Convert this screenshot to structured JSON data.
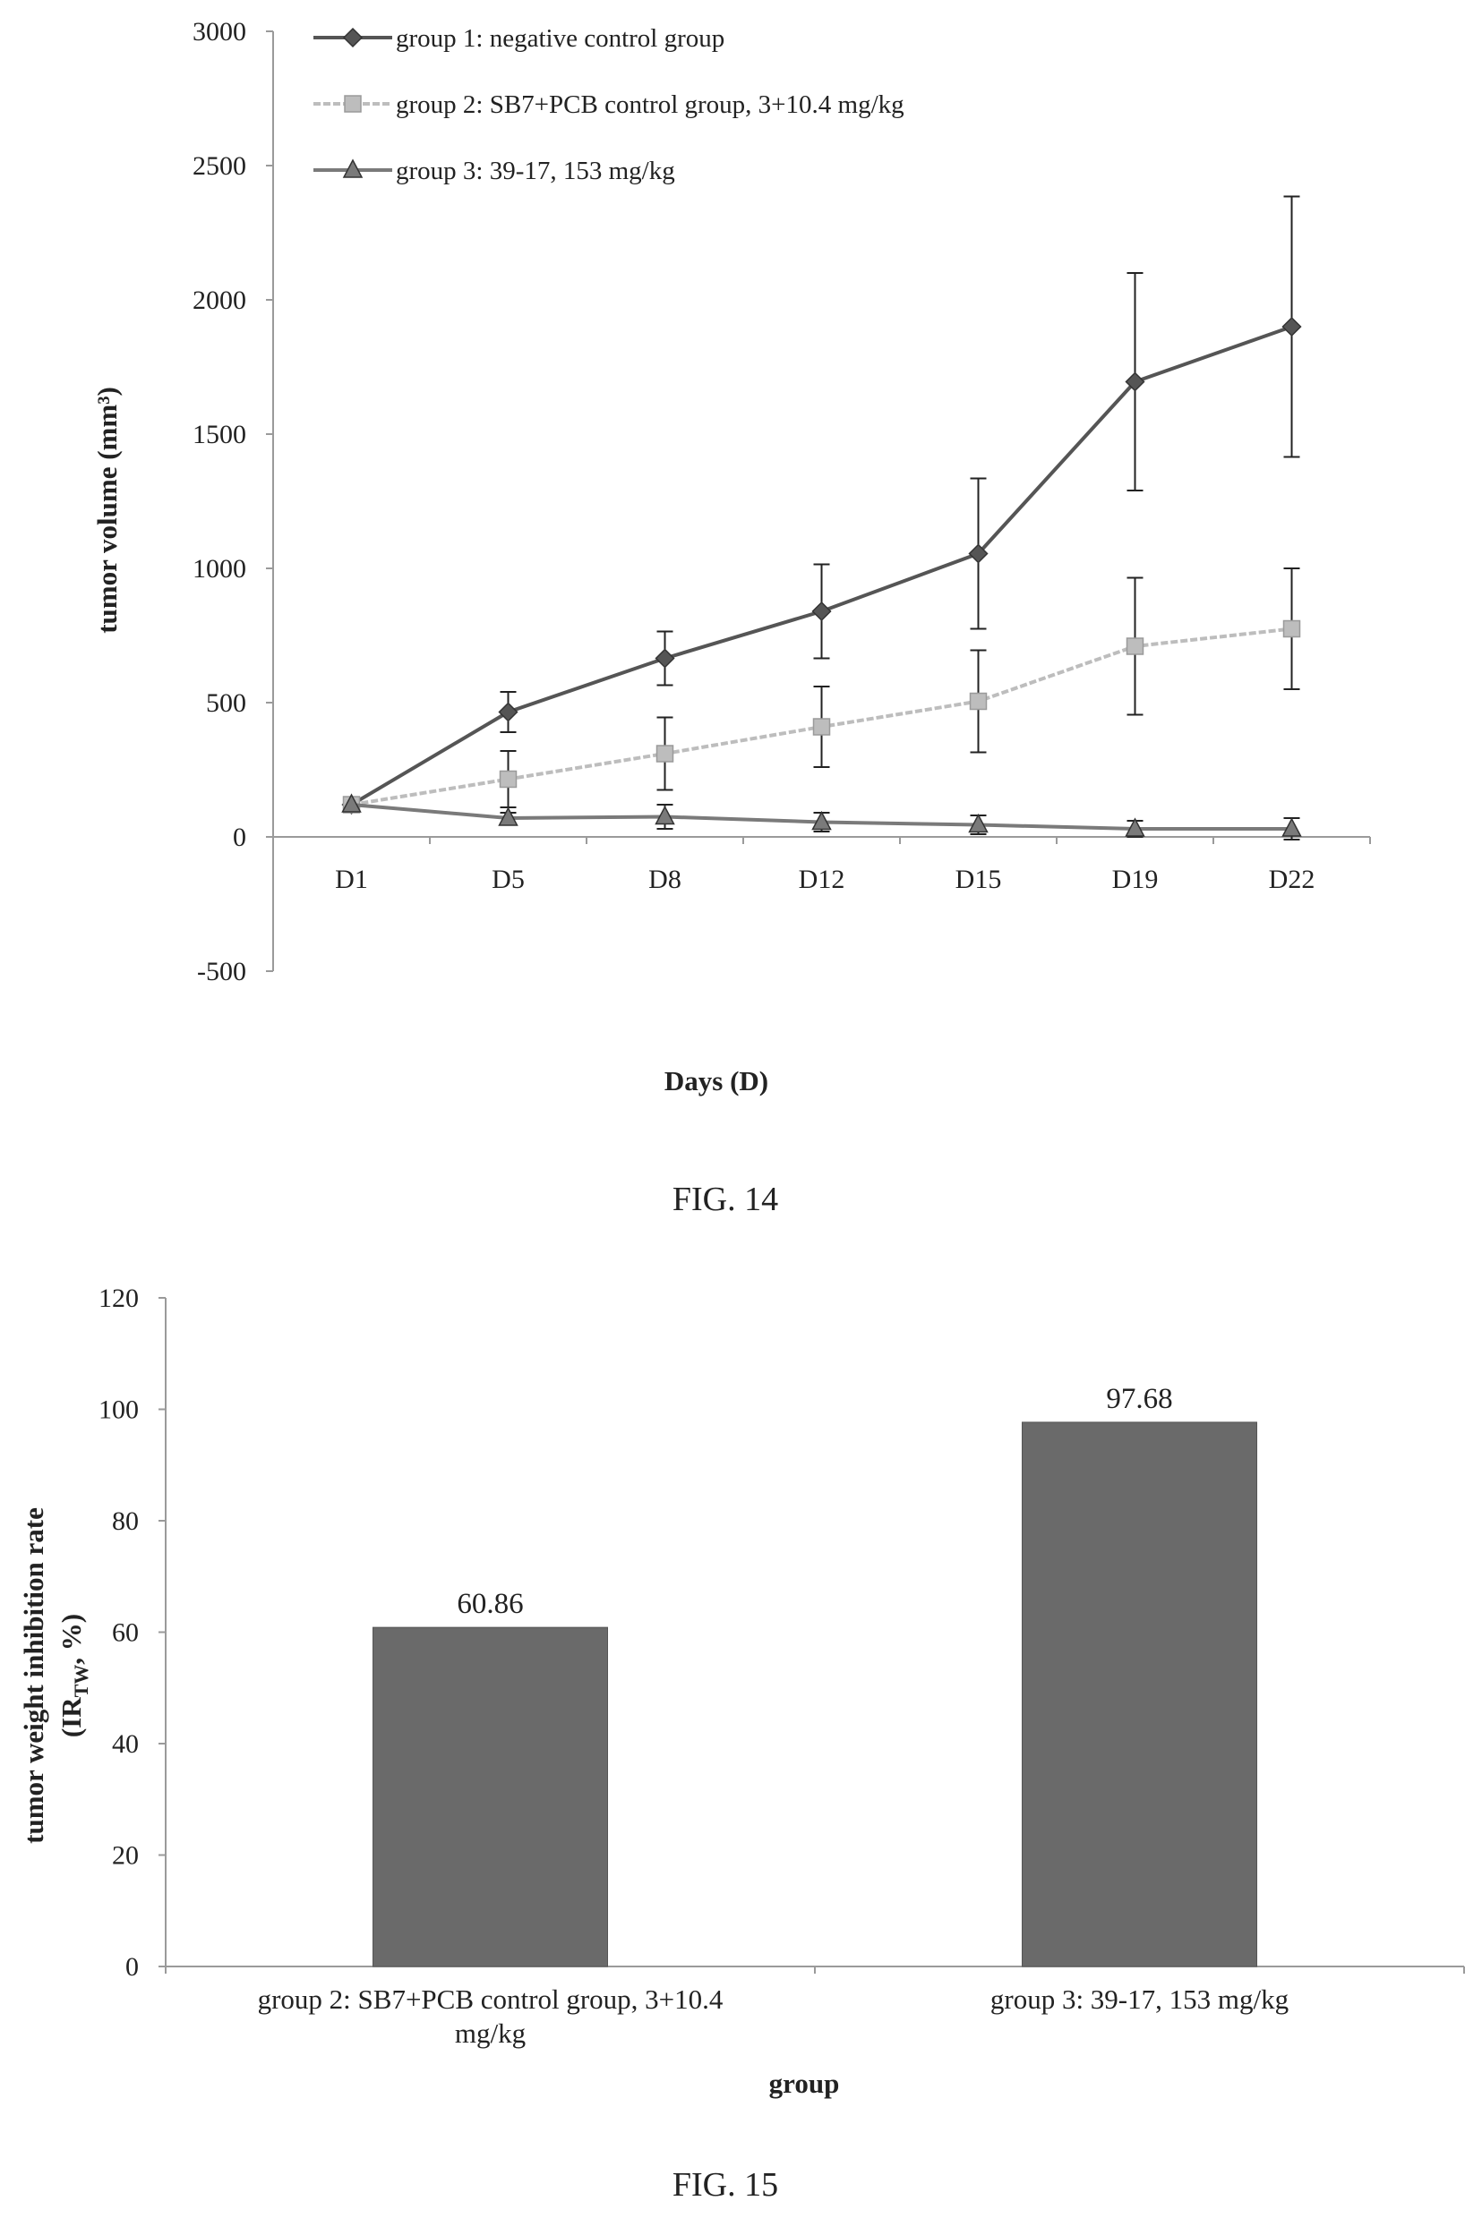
{
  "figures": [
    {
      "caption": "FIG. 14"
    },
    {
      "caption": "FIG. 15"
    }
  ],
  "colors": {
    "axis": "#9a9a9a",
    "group1": "#555555",
    "group2": "#bdbdbd",
    "group3": "#7a7a7a",
    "bar": "#6a6a6a",
    "errorbar": "#222222"
  },
  "chart_data": [
    {
      "type": "line",
      "title": "",
      "xlabel": "Days (D)",
      "ylabel": "tumor volume (mm³)",
      "categories": [
        "D1",
        "D5",
        "D8",
        "D12",
        "D15",
        "D19",
        "D22"
      ],
      "ylim": [
        -500,
        3000
      ],
      "yticks": [
        "-500",
        "0",
        "500",
        "1000",
        "1500",
        "2000",
        "2500",
        "3000"
      ],
      "legend_position": "top-left",
      "grid": false,
      "series": [
        {
          "name": "group 1: negative control group",
          "marker": "diamond",
          "values": [
            120,
            465,
            665,
            840,
            1055,
            1695,
            1900
          ],
          "errors": [
            0,
            75,
            100,
            175,
            280,
            405,
            485
          ]
        },
        {
          "name": "group 2: SB7+PCB control group, 3+10.4 mg/kg",
          "marker": "square",
          "values": [
            120,
            215,
            310,
            410,
            505,
            710,
            775
          ],
          "errors": [
            0,
            105,
            135,
            150,
            190,
            255,
            225
          ]
        },
        {
          "name": "group 3: 39-17, 153 mg/kg",
          "marker": "triangle",
          "values": [
            120,
            70,
            75,
            55,
            45,
            30,
            30
          ],
          "errors": [
            0,
            20,
            45,
            35,
            35,
            30,
            40
          ]
        }
      ]
    },
    {
      "type": "bar",
      "title": "",
      "xlabel": "group",
      "ylabel": "tumor weight inhibition rate",
      "ylabel2_main": "(IR",
      "ylabel2_sub": "TW",
      "ylabel2_tail": ",  %)",
      "categories": [
        "group 2: SB7+PCB control group, 3+10.4 mg/kg",
        "group 3: 39-17, 153 mg/kg"
      ],
      "category_lines": [
        [
          "group 2: SB7+PCB control group, 3+10.4",
          "mg/kg"
        ],
        [
          "group 3: 39-17, 153 mg/kg"
        ]
      ],
      "values": [
        60.86,
        97.68
      ],
      "data_labels": [
        "60.86",
        "97.68"
      ],
      "ylim": [
        0,
        120
      ],
      "yticks": [
        "0",
        "20",
        "40",
        "60",
        "80",
        "100",
        "120"
      ],
      "grid": false
    }
  ]
}
